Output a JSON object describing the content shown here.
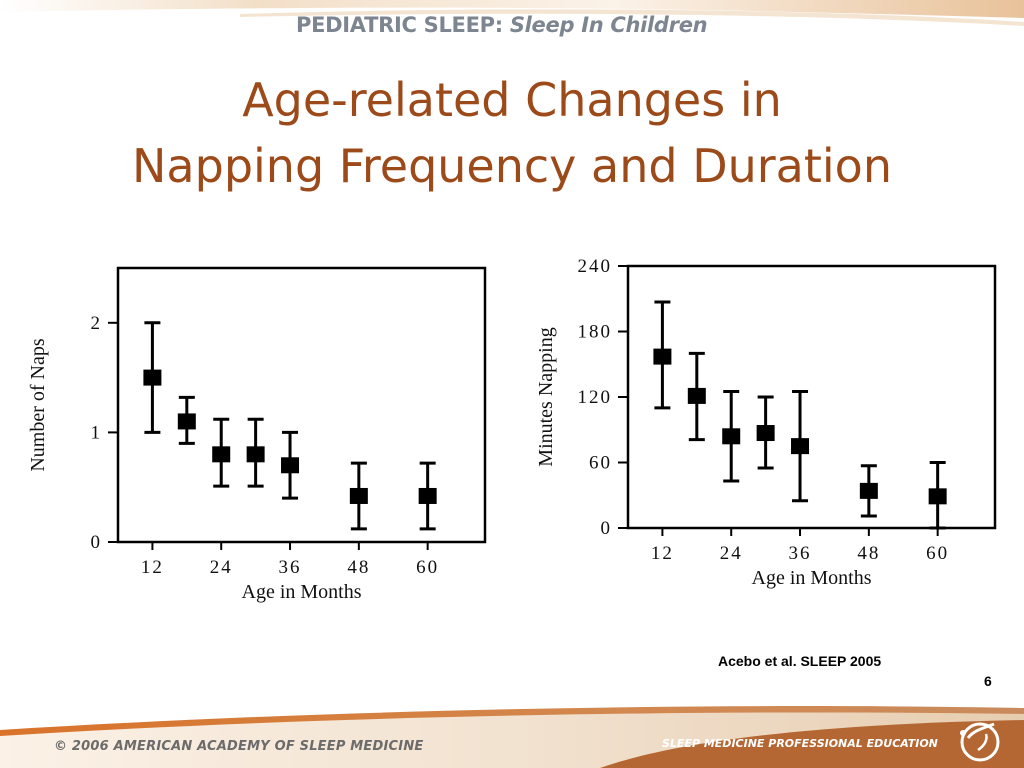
{
  "header": {
    "title_prefix": "PEDIATRIC SLEEP:",
    "title_suffix": " Sleep In Children"
  },
  "slide": {
    "title_line1": "Age-related Changes in",
    "title_line2": "Napping Frequency and Duration"
  },
  "citation": "Acebo et al. SLEEP 2005",
  "page_number": "6",
  "footer": {
    "copyright": "© 2006  AMERICAN ACADEMY OF SLEEP MEDICINE",
    "program": "SLEEP MEDICINE PROFESSIONAL EDUCATION"
  },
  "colors": {
    "title": "#9c4a1a",
    "header_text": "#7d8590",
    "band_orange": "#d9732a",
    "band_tan": "#e8c9a2",
    "marker": "#000000"
  },
  "chart_data": [
    {
      "type": "scatter",
      "title": "",
      "xlabel": "Age in Months",
      "ylabel": "Number of Naps",
      "xlim": [
        6,
        70
      ],
      "ylim": [
        0,
        2.5
      ],
      "xticks": [
        12,
        24,
        36,
        48,
        60
      ],
      "xtick_labels": [
        "12",
        "24",
        "36",
        "48",
        "60"
      ],
      "yticks": [
        0,
        1,
        2
      ],
      "ytick_labels": [
        "0",
        "1",
        "2"
      ],
      "points": [
        {
          "x": 12,
          "y": 1.5,
          "low": 1.0,
          "high": 2.0
        },
        {
          "x": 18,
          "y": 1.1,
          "low": 0.9,
          "high": 1.32
        },
        {
          "x": 24,
          "y": 0.8,
          "low": 0.51,
          "high": 1.12
        },
        {
          "x": 30,
          "y": 0.8,
          "low": 0.51,
          "high": 1.12
        },
        {
          "x": 36,
          "y": 0.7,
          "low": 0.4,
          "high": 1.0
        },
        {
          "x": 48,
          "y": 0.42,
          "low": 0.12,
          "high": 0.72
        },
        {
          "x": 60,
          "y": 0.42,
          "low": 0.12,
          "high": 0.72
        }
      ]
    },
    {
      "type": "scatter",
      "title": "",
      "xlabel": "Age in Months",
      "ylabel": "Minutes Napping",
      "xlim": [
        6,
        70
      ],
      "ylim": [
        0,
        240
      ],
      "xticks": [
        12,
        24,
        36,
        48,
        60
      ],
      "xtick_labels": [
        "12",
        "24",
        "36",
        "48",
        "60"
      ],
      "yticks": [
        0,
        60,
        120,
        180,
        240
      ],
      "ytick_labels": [
        "0",
        "60",
        "120",
        "180",
        "240"
      ],
      "points": [
        {
          "x": 12,
          "y": 157,
          "low": 110,
          "high": 207
        },
        {
          "x": 18,
          "y": 121,
          "low": 81,
          "high": 160
        },
        {
          "x": 24,
          "y": 84,
          "low": 43,
          "high": 125
        },
        {
          "x": 30,
          "y": 87,
          "low": 55,
          "high": 120
        },
        {
          "x": 36,
          "y": 75,
          "low": 25,
          "high": 125
        },
        {
          "x": 48,
          "y": 34,
          "low": 11,
          "high": 57
        },
        {
          "x": 60,
          "y": 29,
          "low": 0,
          "high": 60
        }
      ]
    }
  ]
}
